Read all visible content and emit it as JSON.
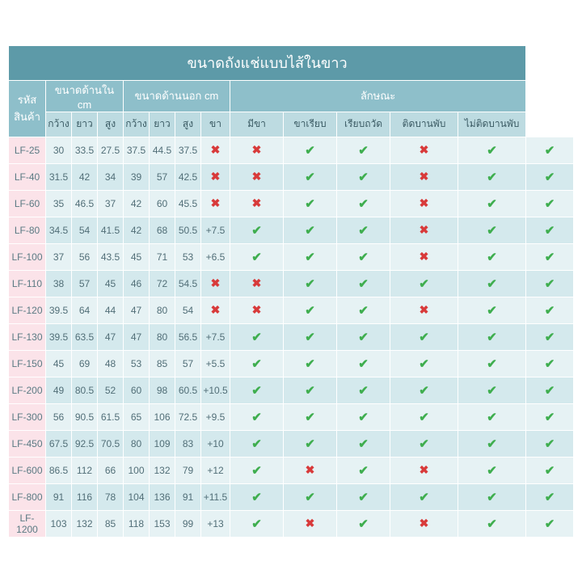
{
  "title": "ขนาดถังแช่แบบไส้ในขาว",
  "colors": {
    "title_bg": "#5d9aa8",
    "group_bg": "#8ebfca",
    "sub_bg": "#bddbe1",
    "code_bg": "#fbe3e9",
    "row_odd": "#e6f2f4",
    "row_even": "#d4e9ed",
    "text": "#516e77",
    "check": "#3fae4f",
    "cross": "#d83a3a"
  },
  "groups": {
    "code": "รหัสสินค้า",
    "inner": "ขนาดด้านใน cm",
    "outer": "ขนาดด้านนอก cm",
    "feature": "ลักษณะ"
  },
  "sub": {
    "w": "กว้าง",
    "l": "ยาว",
    "h": "สูง",
    "leg": "ขา",
    "f1": "มีขา",
    "f2": "ขาเรียบ",
    "f3": "เรียบถวัด",
    "f4": "ติดบานพับ",
    "f5": "ไม่ติดบานพับ"
  },
  "rows": [
    {
      "code": "LF-25",
      "iw": "30",
      "il": "33.5",
      "ih": "27.5",
      "ow": "37.5",
      "ol": "44.5",
      "oh": "37.5",
      "leg": "x",
      "f": [
        "x",
        "y",
        "y",
        "x",
        "y",
        "y"
      ]
    },
    {
      "code": "LF-40",
      "iw": "31.5",
      "il": "42",
      "ih": "34",
      "ow": "39",
      "ol": "57",
      "oh": "42.5",
      "leg": "x",
      "f": [
        "x",
        "y",
        "y",
        "x",
        "y",
        "y"
      ]
    },
    {
      "code": "LF-60",
      "iw": "35",
      "il": "46.5",
      "ih": "37",
      "ow": "42",
      "ol": "60",
      "oh": "45.5",
      "leg": "x",
      "f": [
        "x",
        "y",
        "y",
        "x",
        "y",
        "y"
      ]
    },
    {
      "code": "LF-80",
      "iw": "34.5",
      "il": "54",
      "ih": "41.5",
      "ow": "42",
      "ol": "68",
      "oh": "50.5",
      "leg": "+7.5",
      "f": [
        "y",
        "y",
        "y",
        "x",
        "y",
        "y"
      ]
    },
    {
      "code": "LF-100",
      "iw": "37",
      "il": "56",
      "ih": "43.5",
      "ow": "45",
      "ol": "71",
      "oh": "53",
      "leg": "+6.5",
      "f": [
        "y",
        "y",
        "y",
        "x",
        "y",
        "y"
      ]
    },
    {
      "code": "LF-110",
      "iw": "38",
      "il": "57",
      "ih": "45",
      "ow": "46",
      "ol": "72",
      "oh": "54.5",
      "leg": "x",
      "f": [
        "x",
        "y",
        "y",
        "y",
        "y",
        "y"
      ]
    },
    {
      "code": "LF-120",
      "iw": "39.5",
      "il": "64",
      "ih": "44",
      "ow": "47",
      "ol": "80",
      "oh": "54",
      "leg": "x",
      "f": [
        "x",
        "y",
        "y",
        "x",
        "y",
        "y"
      ]
    },
    {
      "code": "LF-130",
      "iw": "39.5",
      "il": "63.5",
      "ih": "47",
      "ow": "47",
      "ol": "80",
      "oh": "56.5",
      "leg": "+7.5",
      "f": [
        "y",
        "y",
        "y",
        "y",
        "y",
        "y"
      ]
    },
    {
      "code": "LF-150",
      "iw": "45",
      "il": "69",
      "ih": "48",
      "ow": "53",
      "ol": "85",
      "oh": "57",
      "leg": "+5.5",
      "f": [
        "y",
        "y",
        "y",
        "y",
        "y",
        "y"
      ]
    },
    {
      "code": "LF-200",
      "iw": "49",
      "il": "80.5",
      "ih": "52",
      "ow": "60",
      "ol": "98",
      "oh": "60.5",
      "leg": "+10.5",
      "f": [
        "y",
        "y",
        "y",
        "y",
        "y",
        "y"
      ]
    },
    {
      "code": "LF-300",
      "iw": "56",
      "il": "90.5",
      "ih": "61.5",
      "ow": "65",
      "ol": "106",
      "oh": "72.5",
      "leg": "+9.5",
      "f": [
        "y",
        "y",
        "y",
        "y",
        "y",
        "y"
      ]
    },
    {
      "code": "LF-450",
      "iw": "67.5",
      "il": "92.5",
      "ih": "70.5",
      "ow": "80",
      "ol": "109",
      "oh": "83",
      "leg": "+10",
      "f": [
        "y",
        "y",
        "y",
        "y",
        "y",
        "y"
      ]
    },
    {
      "code": "LF-600",
      "iw": "86.5",
      "il": "112",
      "ih": "66",
      "ow": "100",
      "ol": "132",
      "oh": "79",
      "leg": "+12",
      "f": [
        "y",
        "x",
        "y",
        "x",
        "y",
        "y"
      ]
    },
    {
      "code": "LF-800",
      "iw": "91",
      "il": "116",
      "ih": "78",
      "ow": "104",
      "ol": "136",
      "oh": "91",
      "leg": "+11.5",
      "f": [
        "y",
        "y",
        "y",
        "y",
        "y",
        "y"
      ]
    },
    {
      "code": "LF-1200",
      "iw": "103",
      "il": "132",
      "ih": "85",
      "ow": "118",
      "ol": "153",
      "oh": "99",
      "leg": "+13",
      "f": [
        "y",
        "x",
        "y",
        "x",
        "y",
        "y"
      ]
    }
  ]
}
